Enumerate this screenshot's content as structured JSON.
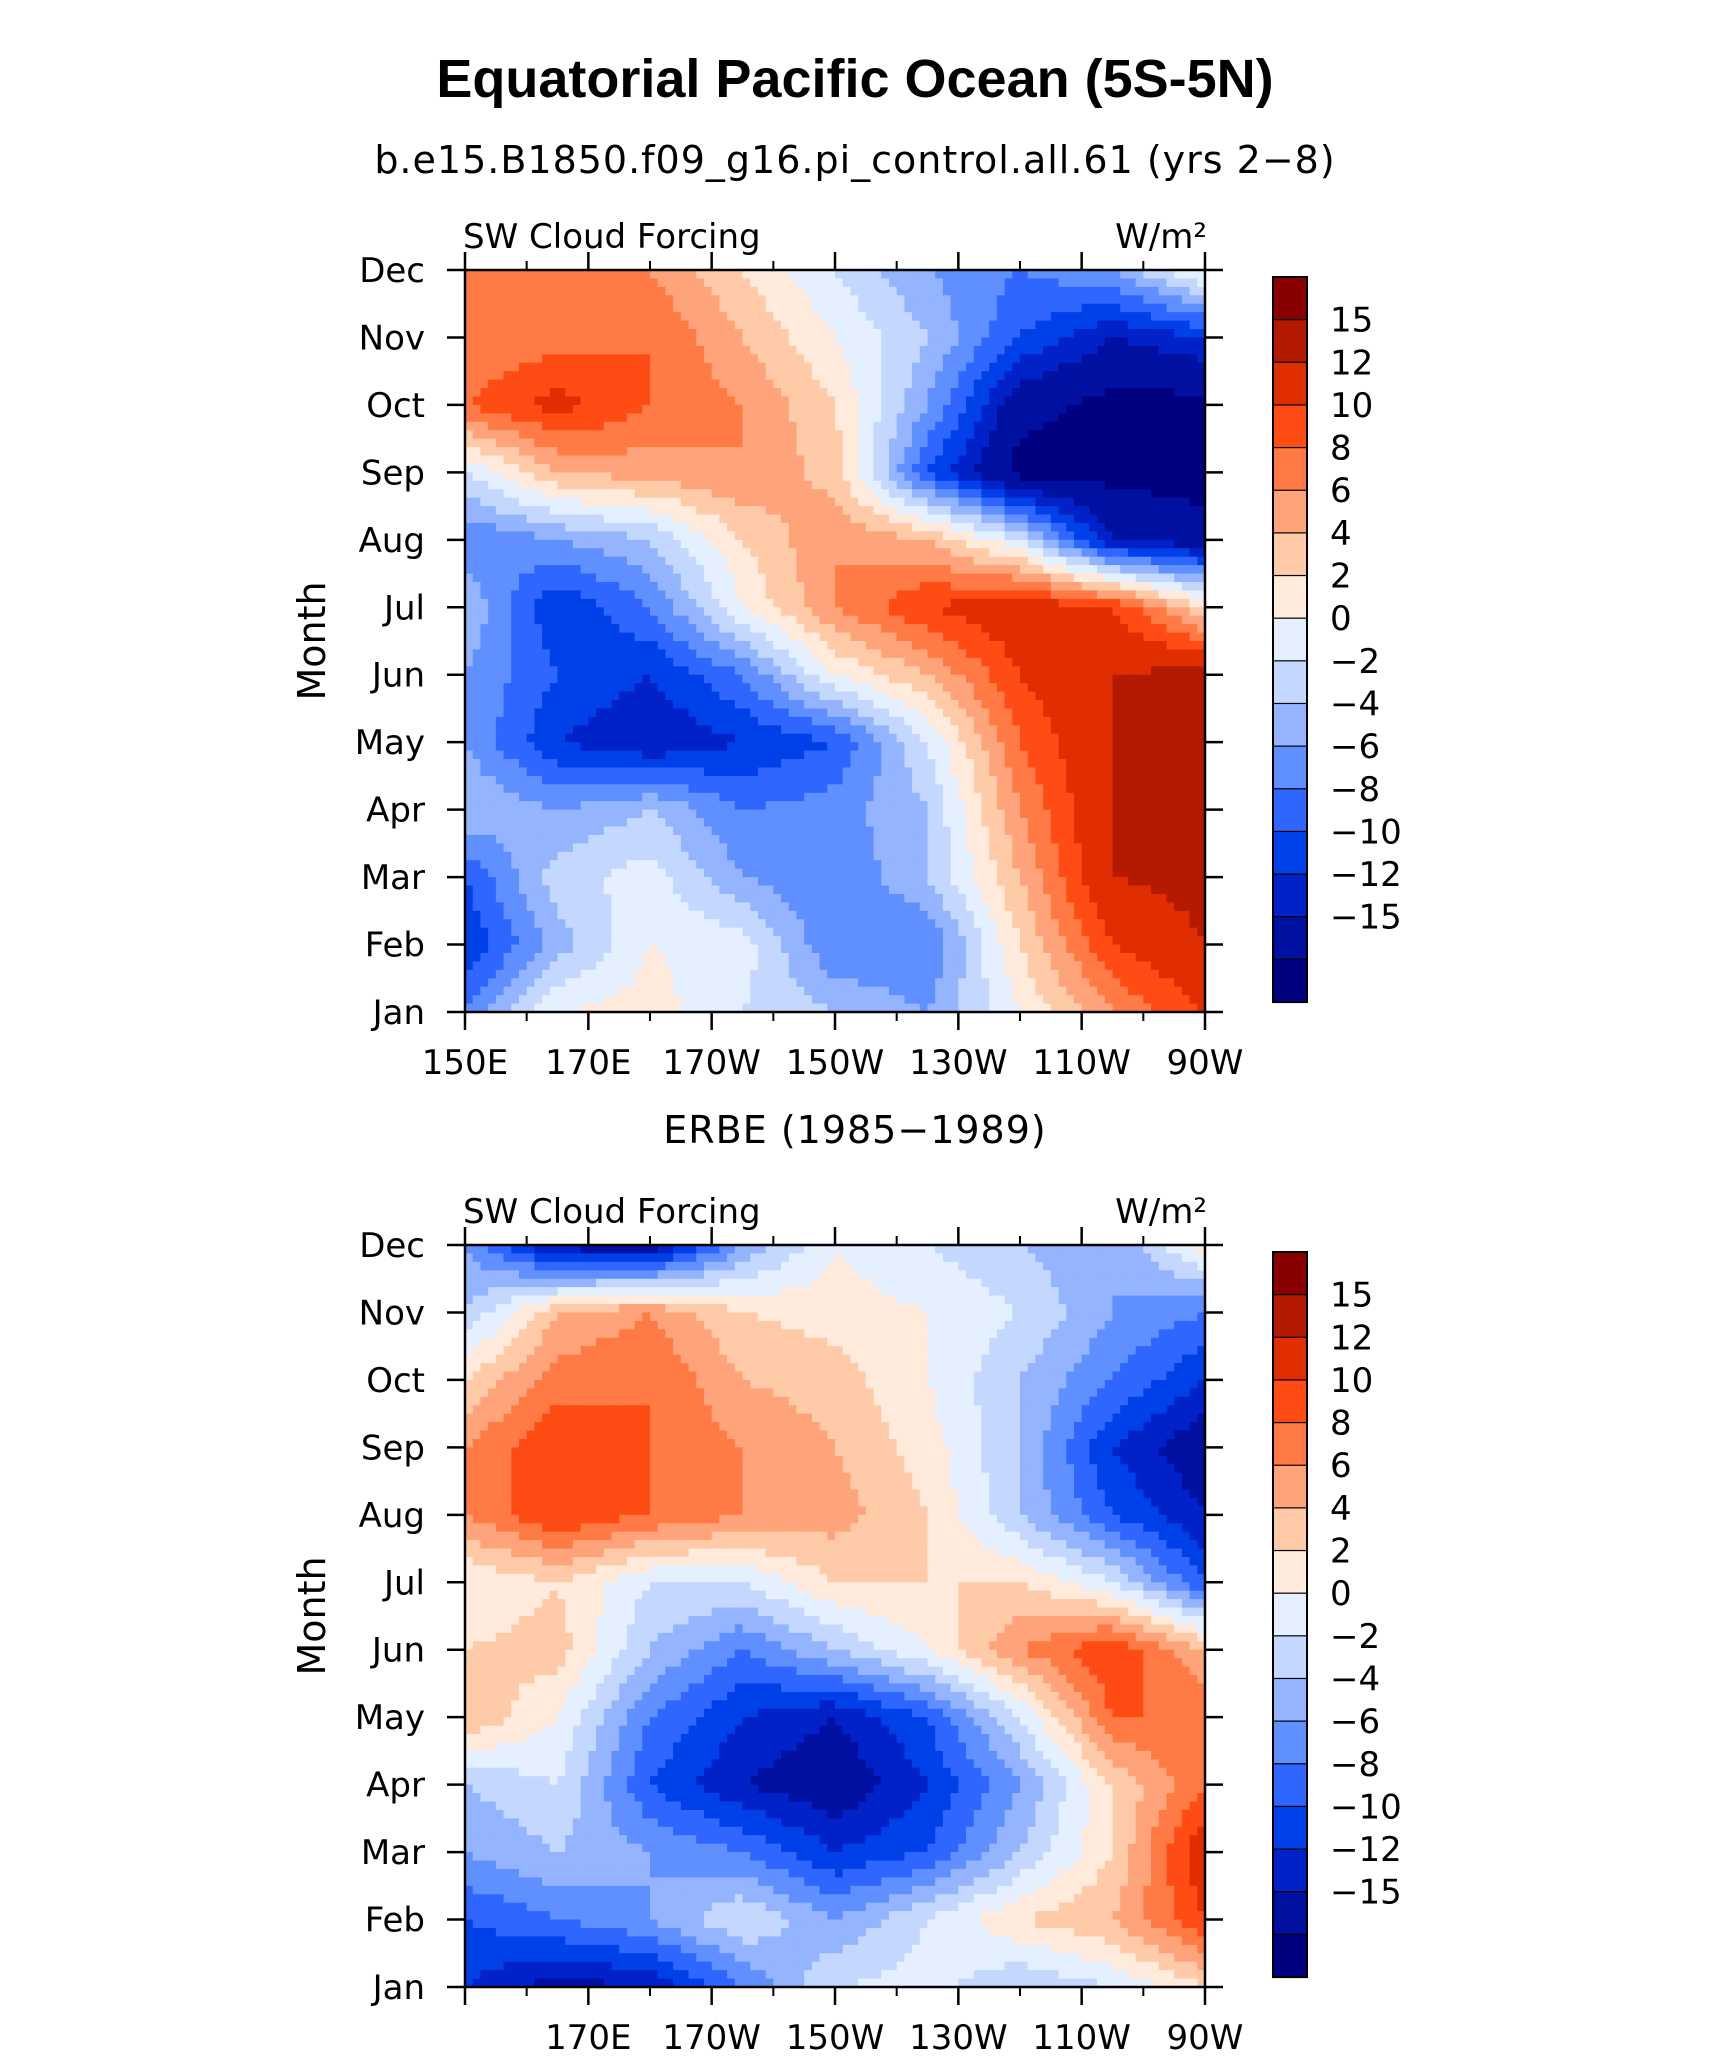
{
  "figure": {
    "title": "Equatorial Pacific Ocean (5S-5N)"
  },
  "colorbar": {
    "levels": [
      -15,
      -12,
      -10,
      -8,
      -6,
      -4,
      -2,
      0,
      2,
      4,
      6,
      8,
      10,
      12,
      15
    ],
    "labels": [
      "15",
      "12",
      "10",
      "8",
      "6",
      "4",
      "2",
      "0",
      "−2",
      "−4",
      "−6",
      "−8",
      "−10",
      "−12",
      "−15"
    ],
    "colors": [
      "#000080",
      "#0010a0",
      "#0022c8",
      "#0040e8",
      "#2e66ff",
      "#6090ff",
      "#94b4ff",
      "#c4d8ff",
      "#e4f0ff",
      "#ffeadc",
      "#ffcaa8",
      "#ffa47a",
      "#ff7a45",
      "#ff4c14",
      "#e02e00",
      "#b41a00",
      "#880000"
    ]
  },
  "chart_data": [
    {
      "type": "heatmap",
      "panel_title": "b.e15.B1850.f09_g16.pi_control.all.61 (yrs 2−8)",
      "left_label": "SW Cloud Forcing",
      "units_label": "W/m²",
      "ylabel": "Month",
      "xlabel": "",
      "x_tick_labels": [
        "150E",
        "170E",
        "170W",
        "150W",
        "130W",
        "110W",
        "90W"
      ],
      "y_tick_labels": [
        "Jan",
        "Feb",
        "Mar",
        "Apr",
        "May",
        "Jun",
        "Jul",
        "Aug",
        "Sep",
        "Oct",
        "Nov",
        "Dec"
      ],
      "x_range_deg_east": [
        150,
        270
      ],
      "months": [
        1,
        2,
        3,
        4,
        5,
        6,
        7,
        8,
        9,
        10,
        11,
        12
      ],
      "colorbar_range": [
        -15,
        15
      ],
      "grid_lon_deg_east": [
        150,
        165,
        180,
        195,
        210,
        225,
        240,
        255,
        270
      ],
      "z_rows_jan_to_dec": [
        [
          -6,
          2,
          3,
          0,
          -2,
          -4,
          2,
          8,
          12
        ],
        [
          -10,
          -3,
          2,
          1,
          -6,
          -6,
          4,
          12,
          15
        ],
        [
          -8,
          -1,
          1,
          -4,
          -6,
          -2,
          6,
          15,
          16
        ],
        [
          -2,
          -4,
          -2,
          -6,
          -5,
          -2,
          8,
          15,
          16
        ],
        [
          -4,
          -10,
          -12,
          -10,
          -8,
          0,
          10,
          15,
          16
        ],
        [
          -4,
          -8,
          -10,
          -6,
          2,
          6,
          12,
          15,
          16
        ],
        [
          -2,
          -10,
          -6,
          2,
          8,
          12,
          14,
          12,
          4
        ],
        [
          -6,
          -4,
          -2,
          4,
          8,
          6,
          0,
          -12,
          -14
        ],
        [
          0,
          6,
          7,
          8,
          5,
          -8,
          -16,
          -16,
          -16
        ],
        [
          10,
          13,
          10,
          8,
          4,
          -4,
          -14,
          -16,
          -16
        ],
        [
          8,
          9,
          10,
          6,
          2,
          -2,
          -8,
          -12,
          -10
        ],
        [
          10,
          8,
          8,
          4,
          0,
          -4,
          -6,
          -4,
          3
        ]
      ]
    },
    {
      "type": "heatmap",
      "panel_title": "ERBE (1985−1989)",
      "left_label": "SW Cloud Forcing",
      "units_label": "W/m²",
      "ylabel": "Month",
      "xlabel": "",
      "x_tick_labels": [
        "170E",
        "170W",
        "150W",
        "130W",
        "110W",
        "90W"
      ],
      "y_tick_labels": [
        "Jan",
        "Feb",
        "Mar",
        "Apr",
        "May",
        "Jun",
        "Jul",
        "Aug",
        "Sep",
        "Oct",
        "Nov",
        "Dec"
      ],
      "x_range_deg_east": [
        150,
        270
      ],
      "months": [
        1,
        2,
        3,
        4,
        5,
        6,
        7,
        8,
        9,
        10,
        11,
        12
      ],
      "colorbar_range": [
        -15,
        15
      ],
      "grid_lon_deg_east": [
        150,
        165,
        180,
        195,
        210,
        225,
        240,
        255,
        270
      ],
      "z_rows_jan_to_dec": [
        [
          -10,
          -13,
          -12,
          -6,
          0,
          1,
          -2,
          0,
          4
        ],
        [
          -8,
          -6,
          -4,
          0,
          -4,
          0,
          4,
          6,
          12
        ],
        [
          -4,
          -2,
          -4,
          -6,
          -10,
          -8,
          -2,
          4,
          14
        ],
        [
          -2,
          0,
          -8,
          -12,
          -14,
          -10,
          -4,
          4,
          10
        ],
        [
          6,
          2,
          -6,
          -10,
          -12,
          -8,
          0,
          10,
          10
        ],
        [
          4,
          5,
          -2,
          -6,
          -2,
          2,
          8,
          12,
          6
        ],
        [
          2,
          4,
          0,
          0,
          4,
          4,
          4,
          0,
          -8
        ],
        [
          8,
          12,
          10,
          8,
          7,
          4,
          -2,
          -8,
          -12
        ],
        [
          8,
          12,
          10,
          8,
          6,
          3,
          -2,
          -10,
          -14
        ],
        [
          4,
          9,
          10,
          6,
          5,
          2,
          -2,
          -6,
          -10
        ],
        [
          -2,
          6,
          8,
          4,
          3,
          2,
          0,
          -4,
          -6
        ],
        [
          -4,
          -13,
          -14,
          -4,
          2,
          0,
          -2,
          -4,
          3
        ]
      ]
    }
  ]
}
